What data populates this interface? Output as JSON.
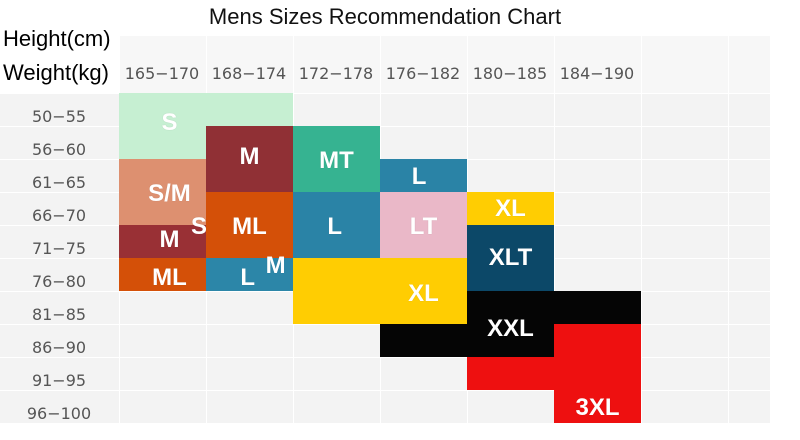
{
  "title": "Mens Sizes Recommendation Chart",
  "height_axis_title": "Height(cm)",
  "weight_axis_title": "Weight(kg)",
  "chart_data": {
    "type": "table",
    "title": "Mens Sizes Recommendation Chart",
    "xlabel": "Height(cm)",
    "ylabel": "Weight(kg)",
    "columns": [
      "165-170",
      "168-174",
      "172-178",
      "176-182",
      "180-185",
      "184-190"
    ],
    "rows": [
      "50-55",
      "56-60",
      "61-65",
      "66-70",
      "71-75",
      "76-80",
      "81-85",
      "86-90",
      "91-95",
      "96-100"
    ],
    "blocks": [
      {
        "color": "#c6efd2",
        "col_start": 0,
        "col_end": 2,
        "row_start": 0,
        "row_end": 1
      },
      {
        "color": "#c6efd2",
        "col_start": 0,
        "col_end": 1,
        "row_start": 1,
        "row_end": 2
      },
      {
        "color": "#903035",
        "col_start": 1,
        "col_end": 2,
        "row_start": 1,
        "row_end": 3
      },
      {
        "color": "#dd9070",
        "col_start": 0,
        "col_end": 1,
        "row_start": 2,
        "row_end": 4
      },
      {
        "color": "#993035",
        "col_start": 0,
        "col_end": 1,
        "row_start": 4,
        "row_end": 5
      },
      {
        "color": "#d45008",
        "col_start": 0,
        "col_end": 1,
        "row_start": 5,
        "row_end": 6
      },
      {
        "color": "#d45008",
        "col_start": 1,
        "col_end": 2,
        "row_start": 3,
        "row_end": 5
      },
      {
        "color": "#2c86a8",
        "col_start": 1,
        "col_end": 2,
        "row_start": 5,
        "row_end": 6
      },
      {
        "color": "#36b391",
        "col_start": 2,
        "col_end": 3,
        "row_start": 1,
        "row_end": 3
      },
      {
        "color": "#2a83a6",
        "col_start": 2,
        "col_end": 3,
        "row_start": 3,
        "row_end": 5
      },
      {
        "color": "#ffcd02",
        "col_start": 2,
        "col_end": 3,
        "row_start": 5,
        "row_end": 7
      },
      {
        "color": "#2a83a6",
        "col_start": 3,
        "col_end": 4,
        "row_start": 2,
        "row_end": 3
      },
      {
        "color": "#eab8c8",
        "col_start": 3,
        "col_end": 4,
        "row_start": 3,
        "row_end": 5
      },
      {
        "color": "#ffcd02",
        "col_start": 3,
        "col_end": 4,
        "row_start": 5,
        "row_end": 7
      },
      {
        "color": "#050505",
        "col_start": 3,
        "col_end": 4,
        "row_start": 7,
        "row_end": 8
      },
      {
        "color": "#ffcd02",
        "col_start": 4,
        "col_end": 5,
        "row_start": 3,
        "row_end": 4
      },
      {
        "color": "#0c4868",
        "col_start": 4,
        "col_end": 5,
        "row_start": 4,
        "row_end": 6
      },
      {
        "color": "#050505",
        "col_start": 4,
        "col_end": 5,
        "row_start": 6,
        "row_end": 8
      },
      {
        "color": "#ee1010",
        "col_start": 4,
        "col_end": 5,
        "row_start": 8,
        "row_end": 9
      },
      {
        "color": "#050505",
        "col_start": 5,
        "col_end": 6,
        "row_start": 6,
        "row_end": 7
      },
      {
        "color": "#ee1010",
        "col_start": 5,
        "col_end": 6,
        "row_start": 7,
        "row_end": 10
      }
    ],
    "labels": [
      {
        "text": "S",
        "col": 0.58,
        "row": 0.9
      },
      {
        "text": "M",
        "col": 1.5,
        "row": 1.95
      },
      {
        "text": "MT",
        "col": 2.5,
        "row": 2.05
      },
      {
        "text": "L",
        "col": 3.45,
        "row": 2.55
      },
      {
        "text": "S/M",
        "col": 0.58,
        "row": 3.05
      },
      {
        "text": "S",
        "col": 0.92,
        "row": 4.05
      },
      {
        "text": "M",
        "col": 0.58,
        "row": 4.45
      },
      {
        "text": "ML",
        "col": 1.5,
        "row": 4.05
      },
      {
        "text": "L",
        "col": 2.48,
        "row": 4.05
      },
      {
        "text": "LT",
        "col": 3.5,
        "row": 4.05
      },
      {
        "text": "XL",
        "col": 4.5,
        "row": 3.5
      },
      {
        "text": "XLT",
        "col": 4.5,
        "row": 5.0
      },
      {
        "text": "ML",
        "col": 0.58,
        "row": 5.6
      },
      {
        "text": "M",
        "col": 1.8,
        "row": 5.25
      },
      {
        "text": "L",
        "col": 1.48,
        "row": 5.6
      },
      {
        "text": "XL",
        "col": 3.5,
        "row": 6.1
      },
      {
        "text": "XXL",
        "col": 4.5,
        "row": 7.15
      },
      {
        "text": "3XL",
        "col": 5.5,
        "row": 9.55
      }
    ]
  }
}
